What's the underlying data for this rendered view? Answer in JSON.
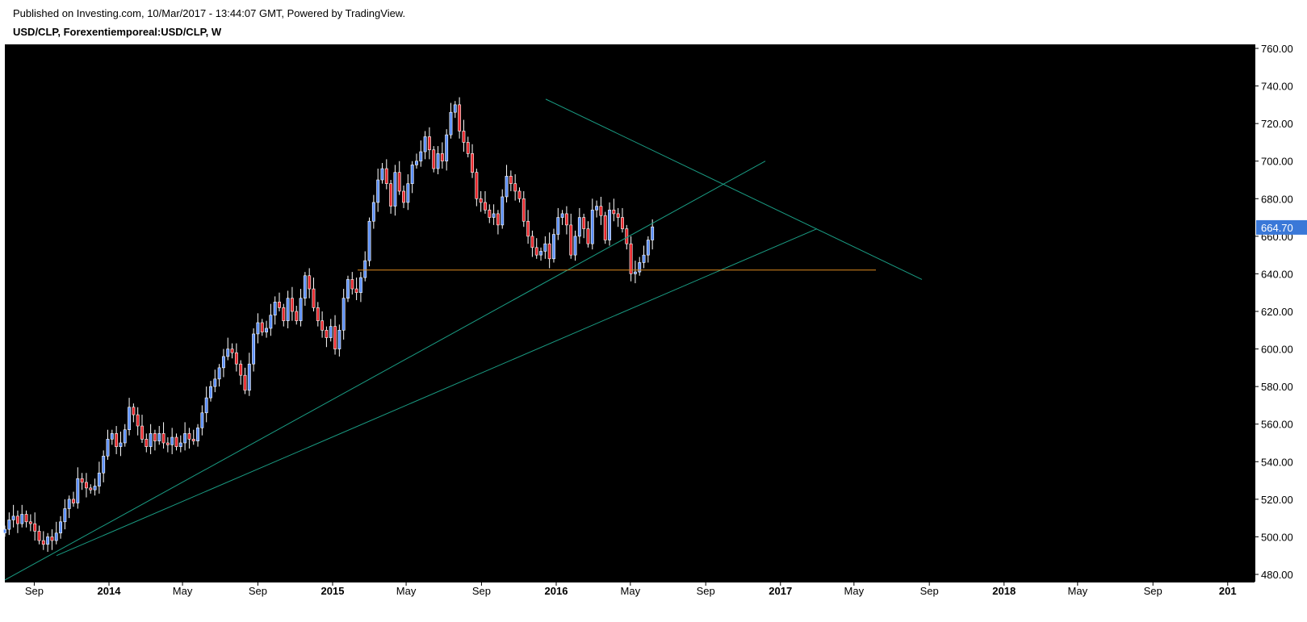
{
  "header": {
    "published": "Published on Investing.com, 10/Mar/2017 - 13:44:07 GMT, Powered by TradingView.",
    "symbol": "USD/CLP, Forexentiemporeal:USD/CLP, W"
  },
  "colors": {
    "background": "#000000",
    "up_candle": "#5b8ff9",
    "down_candle": "#e8262b",
    "wick": "#ffffff",
    "trendline": "#1a9d84",
    "support": "#e08a1e",
    "price_tag": "#3a78d8"
  },
  "chart_data": {
    "type": "candlestick",
    "title": "USD/CLP, Forexentiemporeal:USD/CLP, W",
    "ylim": [
      480,
      760
    ],
    "y_ticks": [
      480,
      500,
      520,
      540,
      560,
      580,
      600,
      620,
      640,
      660,
      680,
      700,
      720,
      740,
      760
    ],
    "y_tick_labels": [
      "480.00",
      "500.00",
      "520.00",
      "540.00",
      "560.00",
      "580.00",
      "600.00",
      "620.00",
      "640.00",
      "660.00",
      "680.00",
      "700.00",
      "720.00",
      "740.00",
      "760.00"
    ],
    "x_range": [
      "2013-07-15",
      "2018-12-31"
    ],
    "x_ticks": [
      {
        "date": "2013-09-01",
        "label": "Sep",
        "bold": false
      },
      {
        "date": "2014-01-01",
        "label": "2014",
        "bold": true
      },
      {
        "date": "2014-05-01",
        "label": "May",
        "bold": false
      },
      {
        "date": "2014-09-01",
        "label": "Sep",
        "bold": false
      },
      {
        "date": "2015-01-01",
        "label": "2015",
        "bold": true
      },
      {
        "date": "2015-05-01",
        "label": "May",
        "bold": false
      },
      {
        "date": "2015-09-01",
        "label": "Sep",
        "bold": false
      },
      {
        "date": "2016-01-01",
        "label": "2016",
        "bold": true
      },
      {
        "date": "2016-05-01",
        "label": "May",
        "bold": false
      },
      {
        "date": "2016-09-01",
        "label": "Sep",
        "bold": false
      },
      {
        "date": "2017-01-01",
        "label": "2017",
        "bold": true
      },
      {
        "date": "2017-05-01",
        "label": "May",
        "bold": false
      },
      {
        "date": "2017-09-01",
        "label": "Sep",
        "bold": false
      },
      {
        "date": "2018-01-01",
        "label": "2018",
        "bold": true
      },
      {
        "date": "2018-05-01",
        "label": "May",
        "bold": false
      },
      {
        "date": "2018-09-01",
        "label": "Sep",
        "bold": false
      },
      {
        "date": "2019-01-01",
        "label": "201",
        "bold": true
      }
    ],
    "last_price": 664.7,
    "last_price_label": "664.70",
    "candles_start": "2013-07-15",
    "candle_interval_days": 7,
    "closes": [
      504,
      509,
      511,
      507,
      512,
      508,
      507,
      503,
      498,
      496,
      500,
      498,
      502,
      508,
      515,
      520,
      518,
      531,
      529,
      526,
      525,
      527,
      534,
      543,
      552,
      555,
      548,
      550,
      557,
      569,
      565,
      559,
      552,
      548,
      555,
      551,
      555,
      550,
      549,
      553,
      548,
      550,
      555,
      552,
      551,
      558,
      566,
      574,
      580,
      584,
      590,
      596,
      600,
      598,
      592,
      586,
      578,
      592,
      608,
      614,
      609,
      611,
      618,
      625,
      622,
      615,
      627,
      620,
      615,
      627,
      639,
      632,
      622,
      615,
      610,
      606,
      612,
      600,
      610,
      627,
      637,
      632,
      630,
      638,
      647,
      668,
      678,
      690,
      696,
      688,
      676,
      694,
      684,
      678,
      688,
      698,
      700,
      705,
      713,
      706,
      696,
      704,
      700,
      714,
      726,
      730,
      716,
      710,
      704,
      694,
      680,
      678,
      674,
      670,
      672,
      666,
      681,
      692,
      688,
      684,
      680,
      668,
      660,
      654,
      650,
      652,
      656,
      648,
      661,
      670,
      672,
      666,
      650,
      660,
      670,
      664,
      656,
      674,
      676,
      671,
      658,
      674,
      672,
      670,
      664,
      656,
      640,
      641,
      646,
      650,
      658,
      665
    ]
  }
}
